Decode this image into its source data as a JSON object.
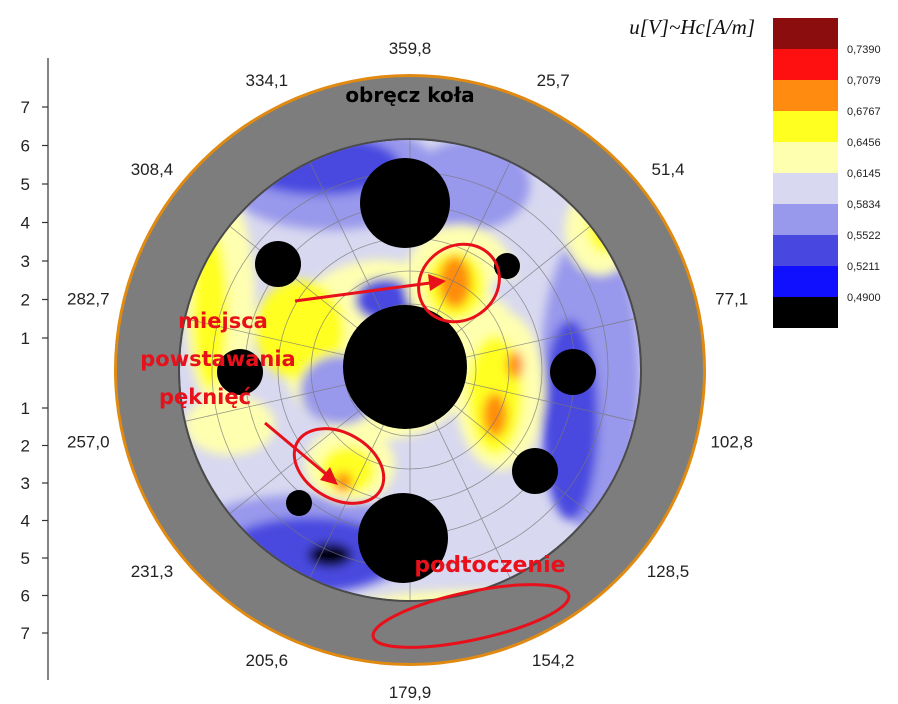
{
  "chart_data": {
    "type": "polar-contour",
    "title": "u[V]~Hc[A/m]",
    "angular_ticks": [
      "359,8",
      "25,7",
      "51,4",
      "77,1",
      "102,8",
      "128,5",
      "154,2",
      "179,9",
      "205,6",
      "231,3",
      "257,0",
      "282,7",
      "308,4",
      "334,1"
    ],
    "radial_ticks_upper": [
      "7",
      "6",
      "5",
      "4",
      "3",
      "2",
      "1"
    ],
    "radial_ticks_lower": [
      "1",
      "2",
      "3",
      "4",
      "5",
      "6",
      "7"
    ],
    "legend": {
      "levels": [
        "0,7390",
        "0,7079",
        "0,6767",
        "0,6456",
        "0,6145",
        "0,5834",
        "0,5522",
        "0,5211",
        "0,4900"
      ],
      "colors": [
        "#8b0d0d",
        "#ff1010",
        "#ff8c10",
        "#ffff20",
        "#ffffb0",
        "#d8d8f0",
        "#9898ec",
        "#4848e0",
        "#1010ff",
        "#000000"
      ]
    },
    "annotations": {
      "rim": "obręcz koła",
      "cracks_line1": "miejsca",
      "cracks_line2": "powstawania",
      "cracks_line3": "pęknięć",
      "undercut": "podtoczenie"
    }
  }
}
